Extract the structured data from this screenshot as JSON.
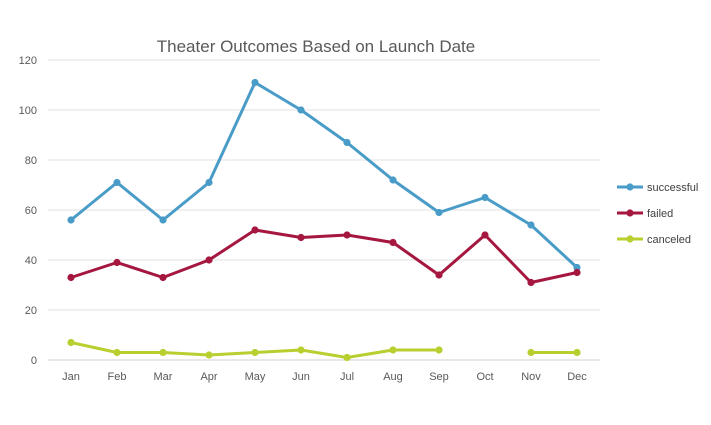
{
  "chart_data": {
    "type": "line",
    "title": "Theater Outcomes Based on Launch Date",
    "categories": [
      "Jan",
      "Feb",
      "Mar",
      "Apr",
      "May",
      "Jun",
      "Jul",
      "Aug",
      "Sep",
      "Oct",
      "Nov",
      "Dec"
    ],
    "series": [
      {
        "name": "successful",
        "color": "#4a9cc8",
        "values": [
          56,
          71,
          56,
          71,
          111,
          100,
          87,
          72,
          59,
          65,
          54,
          37
        ]
      },
      {
        "name": "failed",
        "color": "#a5173f",
        "values": [
          33,
          39,
          33,
          40,
          52,
          49,
          50,
          47,
          34,
          50,
          31,
          35
        ]
      },
      {
        "name": "canceled",
        "color": "#b8cf2f",
        "values": [
          7,
          3,
          3,
          2,
          3,
          4,
          1,
          4,
          4,
          null,
          3,
          3
        ]
      }
    ],
    "ylim": [
      0,
      120
    ],
    "yticks": [
      0,
      20,
      40,
      60,
      80,
      100,
      120
    ],
    "grid": true,
    "legend_position": "right",
    "xlabel": "",
    "ylabel": ""
  }
}
